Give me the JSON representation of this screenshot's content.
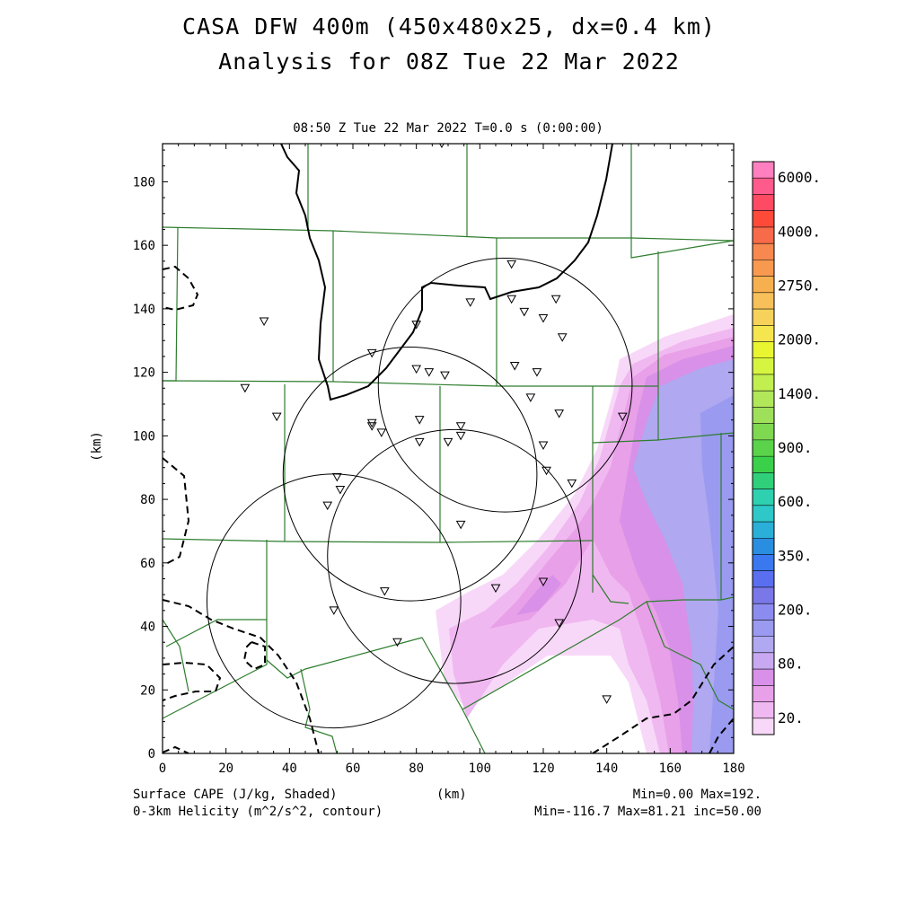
{
  "header": {
    "title": "CASA DFW 400m (450x480x25, dx=0.4 km)",
    "subtitle": "Analysis for 08Z Tue 22 Mar 2022",
    "valid_time": "08:50 Z Tue 22 Mar 2022   T=0.0 s (0:00:00)"
  },
  "axes": {
    "x_label": "(km)",
    "y_label": "(km)",
    "x_range": [
      0,
      180
    ],
    "y_range": [
      0,
      192
    ],
    "x_ticks": [
      "0",
      "20",
      "40",
      "60",
      "80",
      "100",
      "120",
      "140",
      "160",
      "180"
    ],
    "y_ticks": [
      "0",
      "20",
      "40",
      "60",
      "80",
      "100",
      "120",
      "140",
      "160",
      "180"
    ]
  },
  "colorbar": {
    "labels": [
      "6000.",
      "4000.",
      "2750.",
      "2000.",
      "1400.",
      "900.",
      "600.",
      "350.",
      "200.",
      "80.",
      "20."
    ],
    "colors": [
      "#ff7fbf",
      "#ff5a8c",
      "#ff4a64",
      "#ff4a3a",
      "#f76a4a",
      "#f78850",
      "#f79a50",
      "#f7b050",
      "#f7c05a",
      "#f7d25a",
      "#f5e650",
      "#e8f530",
      "#d6f540",
      "#c2ef50",
      "#b0e85a",
      "#9ee05a",
      "#7ed850",
      "#5ad34a",
      "#3ad04a",
      "#30d07a",
      "#2ed0b0",
      "#2ec8c8",
      "#2ab0d8",
      "#2a8ee0",
      "#3a78f0",
      "#5a6ef0",
      "#7a78e8",
      "#8c8cf0",
      "#9a9af0",
      "#b0a8f0",
      "#c8a8f0",
      "#d890e8",
      "#e8a0e8",
      "#f0b8f0",
      "#f8d8f8"
    ]
  },
  "footer": {
    "field1": "Surface CAPE (J/kg, Shaded)",
    "field2": "0-3km Helicity (m^2/s^2, contour)",
    "center_label": "(km)",
    "stats1": "Min=0.00 Max=192.",
    "stats2": "Min=-116.7 Max=81.21 inc=50.00"
  },
  "map": {
    "colors": {
      "cape_light": "#f8d8f8",
      "cape_mid": "#f0b8f0",
      "cape_pink": "#e8a0e8",
      "cape_magenta": "#d890e8",
      "cape_lavender": "#b0a8f0",
      "cape_blue": "#9a9af0",
      "county_lines": "#2e7d2e",
      "contours": "#000000"
    },
    "radar_rings_km": [
      {
        "center": [
          108,
          116
        ],
        "radius": 40
      },
      {
        "center": [
          78,
          88
        ],
        "radius": 40
      },
      {
        "center": [
          92,
          62
        ],
        "radius": 40
      },
      {
        "center": [
          54,
          48
        ],
        "radius": 40
      }
    ],
    "stations_km": [
      [
        32,
        136
      ],
      [
        26,
        115
      ],
      [
        36,
        106
      ],
      [
        88,
        192
      ],
      [
        66,
        126
      ],
      [
        80,
        135
      ],
      [
        97,
        142
      ],
      [
        110,
        143
      ],
      [
        110,
        154
      ],
      [
        114,
        139
      ],
      [
        120,
        137
      ],
      [
        124,
        143
      ],
      [
        126,
        131
      ],
      [
        111,
        122
      ],
      [
        80,
        121
      ],
      [
        84,
        120
      ],
      [
        89,
        119
      ],
      [
        118,
        120
      ],
      [
        116,
        112
      ],
      [
        125,
        107
      ],
      [
        66,
        104
      ],
      [
        66,
        103
      ],
      [
        69,
        101
      ],
      [
        81,
        105
      ],
      [
        94,
        103
      ],
      [
        81,
        98
      ],
      [
        90,
        98
      ],
      [
        94,
        100
      ],
      [
        120,
        97
      ],
      [
        121,
        89
      ],
      [
        129,
        85
      ],
      [
        55,
        87
      ],
      [
        56,
        83
      ],
      [
        52,
        78
      ],
      [
        94,
        72
      ],
      [
        125,
        41
      ],
      [
        120,
        54
      ],
      [
        105,
        52
      ],
      [
        70,
        51
      ],
      [
        54,
        45
      ],
      [
        74,
        35
      ],
      [
        140,
        17
      ],
      [
        145,
        106
      ]
    ]
  }
}
